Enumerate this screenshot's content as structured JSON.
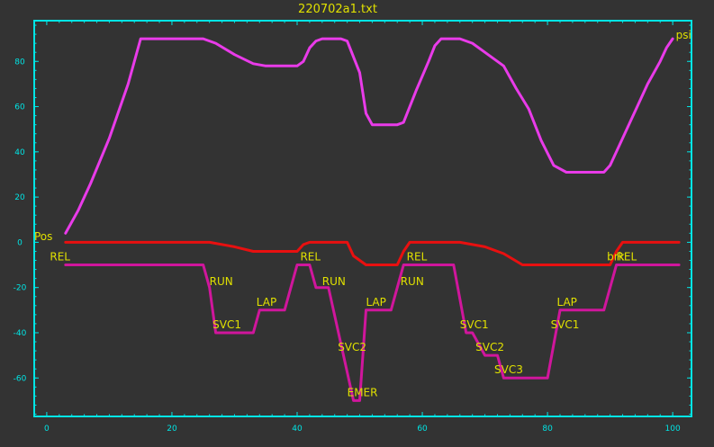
{
  "chart_data": {
    "type": "line",
    "title": "220702a1.txt",
    "xlim": [
      -2,
      103
    ],
    "ylim": [
      -77,
      98
    ],
    "x_ticks": [
      "0",
      "20",
      "40",
      "60",
      "80",
      "100"
    ],
    "y_ticks": [
      "80",
      "60",
      "40",
      "20",
      "0",
      "-20",
      "-40",
      "-60"
    ],
    "grid": false,
    "colors": {
      "background": "#333333",
      "axes": "#00e5e5",
      "tick_labels": "#00e5e5",
      "title": "#e0e000",
      "annotations": "#e0e000"
    },
    "series": [
      {
        "name": "psi",
        "color": "#e93be9",
        "points": [
          [
            3,
            4
          ],
          [
            5,
            14
          ],
          [
            7,
            26
          ],
          [
            10,
            46
          ],
          [
            13,
            70
          ],
          [
            15,
            90
          ],
          [
            25,
            90
          ],
          [
            27,
            88
          ],
          [
            30,
            83
          ],
          [
            33,
            79
          ],
          [
            35,
            78
          ],
          [
            40,
            78
          ],
          [
            41,
            80
          ],
          [
            42,
            86
          ],
          [
            43,
            89
          ],
          [
            44,
            90
          ],
          [
            47,
            90
          ],
          [
            48,
            89
          ],
          [
            50,
            75
          ],
          [
            51,
            57
          ],
          [
            52,
            52
          ],
          [
            56,
            52
          ],
          [
            57,
            53
          ],
          [
            59,
            67
          ],
          [
            61,
            80
          ],
          [
            62,
            87
          ],
          [
            63,
            90
          ],
          [
            66,
            90
          ],
          [
            68,
            88
          ],
          [
            70,
            84
          ],
          [
            73,
            78
          ],
          [
            75,
            68
          ],
          [
            77,
            59
          ],
          [
            79,
            45
          ],
          [
            81,
            34
          ],
          [
            83,
            31
          ],
          [
            89,
            31
          ],
          [
            90,
            34
          ],
          [
            92,
            46
          ],
          [
            94,
            58
          ],
          [
            96,
            70
          ],
          [
            98,
            80
          ],
          [
            99,
            86
          ],
          [
            100,
            90
          ]
        ]
      },
      {
        "name": "Pos",
        "color": "#e81010",
        "points": [
          [
            3,
            0
          ],
          [
            26,
            0
          ],
          [
            30,
            -2
          ],
          [
            33,
            -4
          ],
          [
            35,
            -4
          ],
          [
            40,
            -4
          ],
          [
            41,
            -1
          ],
          [
            42,
            0
          ],
          [
            48,
            0
          ],
          [
            49,
            -6
          ],
          [
            51,
            -10
          ],
          [
            56,
            -10
          ],
          [
            57,
            -4
          ],
          [
            58,
            0
          ],
          [
            66,
            0
          ],
          [
            70,
            -2
          ],
          [
            73,
            -5
          ],
          [
            76,
            -10
          ],
          [
            90,
            -10
          ],
          [
            91,
            -4
          ],
          [
            92,
            0
          ],
          [
            101,
            0
          ]
        ]
      },
      {
        "name": "",
        "color": "#d0169c",
        "points": [
          [
            3,
            -10
          ],
          [
            25,
            -10
          ],
          [
            26,
            -20
          ],
          [
            27,
            -40
          ],
          [
            31,
            -40
          ],
          [
            33,
            -40
          ],
          [
            34,
            -30
          ],
          [
            38,
            -30
          ],
          [
            40,
            -10
          ],
          [
            42,
            -10
          ],
          [
            43,
            -20
          ],
          [
            45,
            -20
          ],
          [
            47,
            -45
          ],
          [
            49,
            -70
          ],
          [
            50,
            -70
          ],
          [
            51,
            -30
          ],
          [
            55,
            -30
          ],
          [
            57,
            -10
          ],
          [
            65,
            -10
          ],
          [
            67,
            -40
          ],
          [
            68,
            -40
          ],
          [
            70,
            -50
          ],
          [
            72,
            -50
          ],
          [
            73,
            -60
          ],
          [
            77,
            -60
          ],
          [
            80,
            -60
          ],
          [
            82,
            -30
          ],
          [
            87,
            -30
          ],
          [
            89,
            -30
          ],
          [
            91,
            -10
          ],
          [
            101,
            -10
          ]
        ]
      }
    ],
    "annotations": [
      {
        "text": "psi",
        "x": 100.5,
        "y": 90
      },
      {
        "text": "Pos",
        "x": -2,
        "y": 1
      },
      {
        "text": "REL",
        "x": 0.5,
        "y": -8
      },
      {
        "text": "RUN",
        "x": 26,
        "y": -19
      },
      {
        "text": "SVC1",
        "x": 26.5,
        "y": -38
      },
      {
        "text": "LAP",
        "x": 33.5,
        "y": -28
      },
      {
        "text": "REL",
        "x": 40.5,
        "y": -8
      },
      {
        "text": "RUN",
        "x": 44,
        "y": -19
      },
      {
        "text": "SVC2",
        "x": 46.5,
        "y": -48
      },
      {
        "text": "EMER",
        "x": 48,
        "y": -68
      },
      {
        "text": "LAP",
        "x": 51,
        "y": -28
      },
      {
        "text": "RUN",
        "x": 56.5,
        "y": -19
      },
      {
        "text": "REL",
        "x": 57.5,
        "y": -8
      },
      {
        "text": "SVC1",
        "x": 66,
        "y": -38
      },
      {
        "text": "SVC2",
        "x": 68.5,
        "y": -48
      },
      {
        "text": "SVC3",
        "x": 71.5,
        "y": -58
      },
      {
        "text": "LAP",
        "x": 81.5,
        "y": -28
      },
      {
        "text": "SVC1",
        "x": 80.5,
        "y": -38
      },
      {
        "text": "brk",
        "x": 89.5,
        "y": -8
      },
      {
        "text": "REL",
        "x": 91,
        "y": -8
      }
    ]
  }
}
